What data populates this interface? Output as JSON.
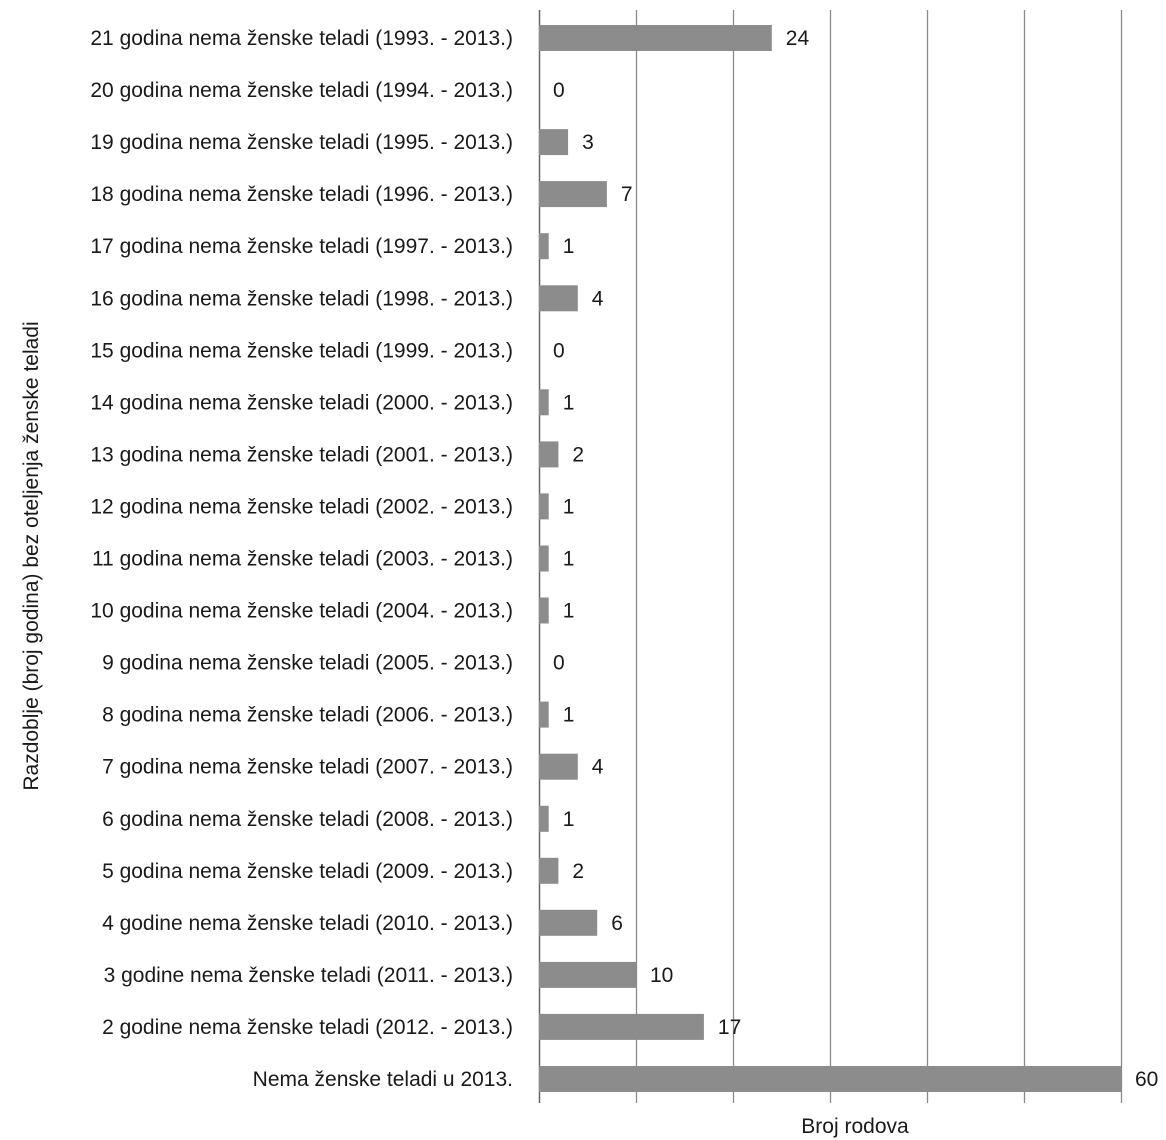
{
  "chart_data": {
    "type": "bar",
    "orientation": "horizontal",
    "title": "",
    "xlabel": "Broj rodova",
    "ylabel": "Razdoblje (broj godina) bez oteljenja ženske teladi",
    "xlim": [
      0,
      60
    ],
    "grid": true,
    "legend": "none",
    "bar_color": "#8c8c8c",
    "categories": [
      "21 godina nema ženske teladi (1993. - 2013.)",
      "20 godina nema ženske teladi (1994. - 2013.)",
      "19 godina nema ženske teladi (1995. - 2013.)",
      "18 godina nema ženske teladi (1996. - 2013.)",
      "17 godina nema ženske teladi (1997. - 2013.)",
      "16 godina nema ženske teladi (1998. - 2013.)",
      "15 godina nema ženske teladi (1999. - 2013.)",
      "14 godina nema ženske teladi (2000. - 2013.)",
      "13 godina nema ženske teladi (2001. - 2013.)",
      "12 godina nema ženske teladi (2002. - 2013.)",
      "11 godina nema ženske teladi (2003. - 2013.)",
      "10 godina nema ženske teladi (2004. - 2013.)",
      "9 godina nema ženske teladi (2005. - 2013.)",
      "8 godina nema ženske teladi (2006. - 2013.)",
      "7 godina nema ženske teladi (2007. - 2013.)",
      "6 godina nema ženske teladi (2008. - 2013.)",
      "5 godina nema ženske teladi (2009. - 2013.)",
      "4 godine nema ženske teladi (2010. - 2013.)",
      "3 godine nema ženske teladi (2011. - 2013.)",
      "2 godine nema ženske teladi (2012. - 2013.)",
      "Nema ženske teladi u 2013."
    ],
    "values": [
      24,
      0,
      3,
      7,
      1,
      4,
      0,
      1,
      2,
      1,
      1,
      1,
      0,
      1,
      4,
      1,
      2,
      6,
      10,
      17,
      60
    ]
  }
}
